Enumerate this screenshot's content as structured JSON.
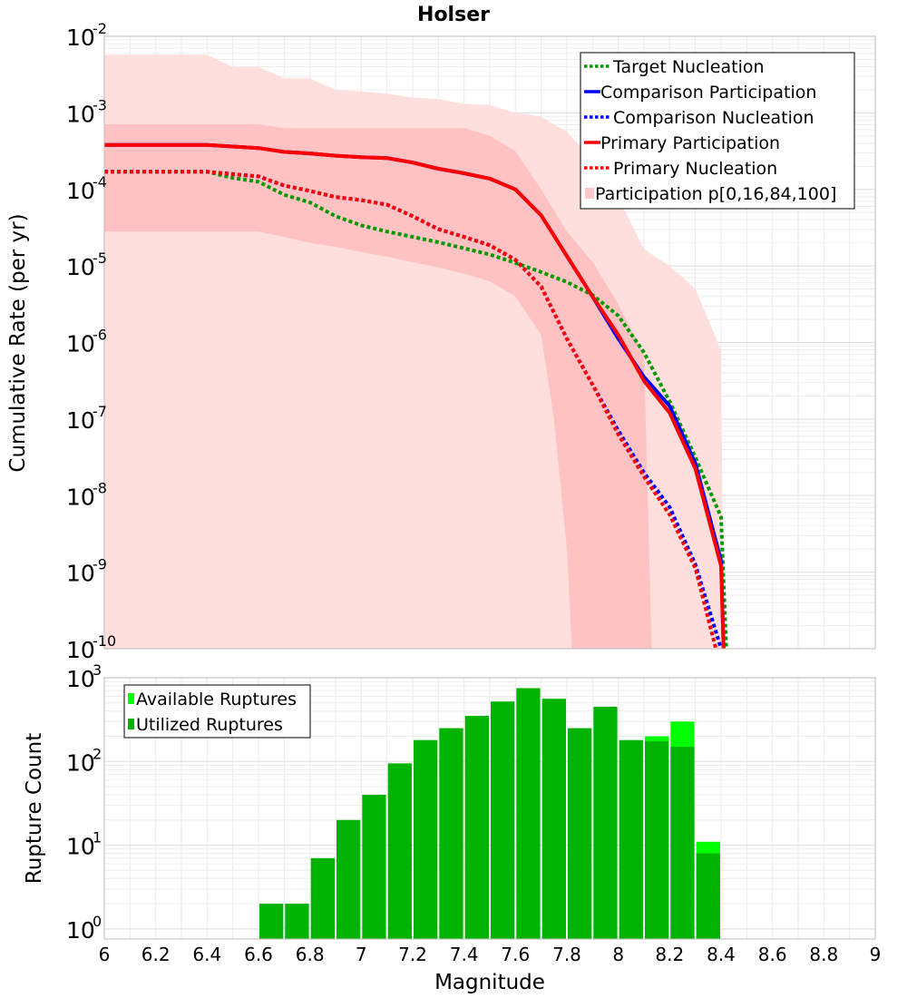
{
  "chart_data": [
    {
      "type": "line",
      "title": "Holser",
      "xlabel": "",
      "ylabel": "Cumulative Rate (per yr)",
      "xlim": [
        6,
        9
      ],
      "ylim_log10": [
        -10,
        -2
      ],
      "y_tick_exponents": [
        "-10",
        "-9",
        "-8",
        "-7",
        "-6",
        "-5",
        "-4",
        "-3",
        "-2"
      ],
      "legend_position": "top-right",
      "legend": [
        "Target Nucleation",
        "Comparison Participation",
        " Comparison Nucleation",
        "Primary Participation",
        " Primary Nucleation",
        "Participation p[0,16,84,100]"
      ],
      "colors": {
        "target": "#009900",
        "comparison": "#0000ff",
        "primary": "#ff0000",
        "band_outer": "#ffdede",
        "band_inner": "#ffc2c2",
        "grid": "#e6e6e6",
        "frame": "#bbbbbb"
      },
      "bands": {
        "outer_upper": [
          [
            6.0,
            -2.24
          ],
          [
            6.4,
            -2.24
          ],
          [
            6.5,
            -2.4
          ],
          [
            6.6,
            -2.4
          ],
          [
            6.7,
            -2.55
          ],
          [
            6.8,
            -2.55
          ],
          [
            6.9,
            -2.7
          ],
          [
            7.0,
            -2.72
          ],
          [
            7.1,
            -2.75
          ],
          [
            7.2,
            -2.8
          ],
          [
            7.3,
            -2.82
          ],
          [
            7.4,
            -2.88
          ],
          [
            7.5,
            -2.9
          ],
          [
            7.6,
            -3.0
          ],
          [
            7.7,
            -3.05
          ],
          [
            7.8,
            -3.25
          ],
          [
            7.9,
            -3.6
          ],
          [
            8.0,
            -4.1
          ],
          [
            8.1,
            -4.78
          ],
          [
            8.2,
            -5.0
          ],
          [
            8.3,
            -5.3
          ],
          [
            8.4,
            -6.1
          ],
          [
            8.41,
            -10
          ]
        ],
        "outer_lower": [
          [
            6.0,
            -10
          ],
          [
            8.41,
            -10
          ]
        ],
        "inner_upper": [
          [
            6.0,
            -3.15
          ],
          [
            6.6,
            -3.15
          ],
          [
            6.7,
            -3.2
          ],
          [
            7.4,
            -3.2
          ],
          [
            7.5,
            -3.3
          ],
          [
            7.6,
            -3.5
          ],
          [
            7.7,
            -4.0
          ],
          [
            7.8,
            -4.55
          ],
          [
            7.9,
            -4.95
          ],
          [
            8.0,
            -5.5
          ],
          [
            8.1,
            -6.15
          ],
          [
            8.13,
            -10
          ]
        ],
        "inner_lower": [
          [
            6.0,
            -4.55
          ],
          [
            6.6,
            -4.55
          ],
          [
            6.7,
            -4.62
          ],
          [
            6.8,
            -4.7
          ],
          [
            6.9,
            -4.75
          ],
          [
            7.0,
            -4.82
          ],
          [
            7.1,
            -4.88
          ],
          [
            7.2,
            -4.95
          ],
          [
            7.3,
            -5.02
          ],
          [
            7.4,
            -5.1
          ],
          [
            7.5,
            -5.2
          ],
          [
            7.6,
            -5.4
          ],
          [
            7.7,
            -5.9
          ],
          [
            7.75,
            -7.0
          ],
          [
            7.8,
            -8.7
          ],
          [
            7.82,
            -10
          ]
        ]
      },
      "series": [
        {
          "name": "Target Nucleation",
          "dashed": true,
          "points": [
            [
              6.0,
              -3.77
            ],
            [
              6.4,
              -3.77
            ],
            [
              6.5,
              -3.85
            ],
            [
              6.6,
              -3.9
            ],
            [
              6.7,
              -4.07
            ],
            [
              6.8,
              -4.17
            ],
            [
              6.9,
              -4.35
            ],
            [
              7.0,
              -4.47
            ],
            [
              7.1,
              -4.55
            ],
            [
              7.2,
              -4.62
            ],
            [
              7.3,
              -4.69
            ],
            [
              7.4,
              -4.77
            ],
            [
              7.5,
              -4.85
            ],
            [
              7.6,
              -4.96
            ],
            [
              7.7,
              -5.08
            ],
            [
              7.8,
              -5.21
            ],
            [
              7.9,
              -5.38
            ],
            [
              8.0,
              -5.65
            ],
            [
              8.1,
              -6.13
            ],
            [
              8.2,
              -6.77
            ],
            [
              8.3,
              -7.5
            ],
            [
              8.4,
              -8.28
            ],
            [
              8.42,
              -10
            ]
          ]
        },
        {
          "name": "Comparison Participation",
          "dashed": false,
          "points": [
            [
              6.0,
              -3.42
            ],
            [
              6.4,
              -3.42
            ],
            [
              6.5,
              -3.44
            ],
            [
              6.6,
              -3.46
            ],
            [
              6.7,
              -3.51
            ],
            [
              6.8,
              -3.53
            ],
            [
              6.9,
              -3.56
            ],
            [
              7.0,
              -3.58
            ],
            [
              7.1,
              -3.59
            ],
            [
              7.2,
              -3.65
            ],
            [
              7.3,
              -3.73
            ],
            [
              7.4,
              -3.79
            ],
            [
              7.5,
              -3.86
            ],
            [
              7.6,
              -4.0
            ],
            [
              7.7,
              -4.34
            ],
            [
              7.8,
              -4.87
            ],
            [
              7.9,
              -5.4
            ],
            [
              8.0,
              -5.95
            ],
            [
              8.1,
              -6.45
            ],
            [
              8.2,
              -6.83
            ],
            [
              8.3,
              -7.58
            ],
            [
              8.4,
              -8.85
            ],
            [
              8.41,
              -10
            ]
          ]
        },
        {
          "name": " Comparison Nucleation",
          "dashed": true,
          "points": [
            [
              6.0,
              -3.77
            ],
            [
              6.4,
              -3.77
            ],
            [
              6.5,
              -3.8
            ],
            [
              6.6,
              -3.83
            ],
            [
              6.7,
              -3.95
            ],
            [
              6.8,
              -4.02
            ],
            [
              6.9,
              -4.1
            ],
            [
              7.0,
              -4.14
            ],
            [
              7.1,
              -4.2
            ],
            [
              7.2,
              -4.35
            ],
            [
              7.3,
              -4.52
            ],
            [
              7.4,
              -4.62
            ],
            [
              7.5,
              -4.73
            ],
            [
              7.6,
              -4.92
            ],
            [
              7.7,
              -5.27
            ],
            [
              7.8,
              -5.95
            ],
            [
              7.9,
              -6.55
            ],
            [
              8.0,
              -7.15
            ],
            [
              8.1,
              -7.7
            ],
            [
              8.2,
              -8.15
            ],
            [
              8.3,
              -8.9
            ],
            [
              8.4,
              -10.0
            ]
          ]
        },
        {
          "name": "Primary Participation",
          "dashed": false,
          "points": [
            [
              6.0,
              -3.42
            ],
            [
              6.4,
              -3.42
            ],
            [
              6.5,
              -3.44
            ],
            [
              6.6,
              -3.46
            ],
            [
              6.7,
              -3.51
            ],
            [
              6.8,
              -3.53
            ],
            [
              6.9,
              -3.56
            ],
            [
              7.0,
              -3.58
            ],
            [
              7.1,
              -3.59
            ],
            [
              7.2,
              -3.65
            ],
            [
              7.3,
              -3.73
            ],
            [
              7.4,
              -3.79
            ],
            [
              7.5,
              -3.86
            ],
            [
              7.6,
              -4.0
            ],
            [
              7.7,
              -4.34
            ],
            [
              7.8,
              -4.87
            ],
            [
              7.9,
              -5.4
            ],
            [
              8.0,
              -5.9
            ],
            [
              8.1,
              -6.5
            ],
            [
              8.2,
              -6.92
            ],
            [
              8.3,
              -7.65
            ],
            [
              8.4,
              -8.92
            ],
            [
              8.41,
              -10
            ]
          ]
        },
        {
          "name": " Primary Nucleation",
          "dashed": true,
          "points": [
            [
              6.0,
              -3.77
            ],
            [
              6.4,
              -3.77
            ],
            [
              6.5,
              -3.8
            ],
            [
              6.6,
              -3.83
            ],
            [
              6.7,
              -3.95
            ],
            [
              6.8,
              -4.02
            ],
            [
              6.9,
              -4.1
            ],
            [
              7.0,
              -4.14
            ],
            [
              7.1,
              -4.2
            ],
            [
              7.2,
              -4.35
            ],
            [
              7.3,
              -4.52
            ],
            [
              7.4,
              -4.62
            ],
            [
              7.5,
              -4.73
            ],
            [
              7.6,
              -4.92
            ],
            [
              7.7,
              -5.27
            ],
            [
              7.8,
              -5.95
            ],
            [
              7.9,
              -6.55
            ],
            [
              8.0,
              -7.2
            ],
            [
              8.1,
              -7.75
            ],
            [
              8.2,
              -8.25
            ],
            [
              8.3,
              -8.95
            ],
            [
              8.38,
              -10.0
            ]
          ]
        }
      ]
    },
    {
      "type": "bar",
      "xlabel": "Magnitude",
      "ylabel": "Rupture Count",
      "xlim": [
        6,
        9
      ],
      "x_ticks": [
        "6",
        "6.2",
        "6.4",
        "6.6",
        "6.8",
        "7",
        "7.2",
        "7.4",
        "7.6",
        "7.8",
        "8",
        "8.2",
        "8.4",
        "8.6",
        "8.8",
        "9"
      ],
      "ylim_log10": [
        -0.12,
        3
      ],
      "y_tick_exponents": [
        "0",
        "1",
        "2",
        "3"
      ],
      "legend_position": "top-left",
      "legend": [
        "Available Ruptures",
        "Utilized Ruptures"
      ],
      "colors": {
        "available": "#00ff00",
        "utilized": "#00b300"
      },
      "bin_width": 0.1,
      "bin_centers": [
        6.65,
        6.75,
        6.85,
        6.95,
        7.05,
        7.15,
        7.25,
        7.35,
        7.45,
        7.55,
        7.65,
        7.75,
        7.85,
        7.95,
        8.05,
        8.15,
        8.25,
        8.35
      ],
      "series": [
        {
          "name": "Available Ruptures",
          "values": [
            2,
            2,
            7,
            20,
            40,
            95,
            180,
            250,
            350,
            520,
            750,
            560,
            250,
            450,
            180,
            200,
            300,
            11
          ]
        },
        {
          "name": "Utilized Ruptures",
          "values": [
            2,
            2,
            7,
            20,
            40,
            95,
            180,
            250,
            350,
            520,
            750,
            560,
            250,
            450,
            180,
            175,
            150,
            8
          ]
        }
      ]
    }
  ]
}
